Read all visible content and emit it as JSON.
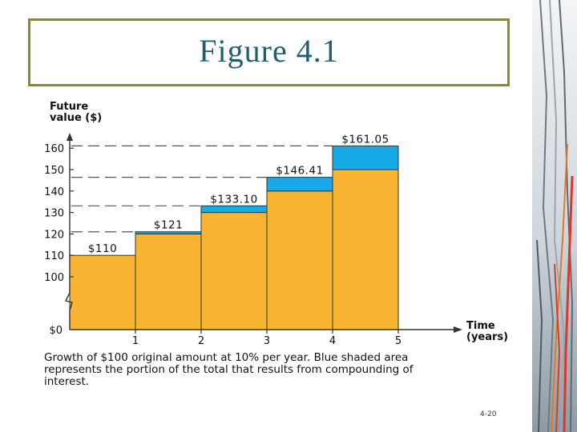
{
  "slide": {
    "title": "Figure 4.1",
    "page_number": "4-20"
  },
  "colors": {
    "principal": "#f9b431",
    "interest": "#17a9e8",
    "title": "#1f5f6e",
    "frame": "#8a8a28"
  },
  "chart_data": {
    "type": "bar",
    "title": "",
    "ylabel": [
      "Future",
      "value ($)"
    ],
    "xlabel": [
      "Time",
      "(years)"
    ],
    "y_ticks": [
      100,
      110,
      120,
      130,
      140,
      150,
      160
    ],
    "y_zero_label": "$0",
    "x_ticks": [
      "1",
      "2",
      "3",
      "4",
      "5"
    ],
    "ylim": [
      100,
      165
    ],
    "axis_break": true,
    "bars": [
      {
        "x_start": 0,
        "x_end": 1,
        "principal": 110,
        "total": 110,
        "label": "$110"
      },
      {
        "x_start": 1,
        "x_end": 2,
        "principal": 120,
        "total": 121,
        "label": "$121"
      },
      {
        "x_start": 2,
        "x_end": 3,
        "principal": 130,
        "total": 133.1,
        "label": "$133.10"
      },
      {
        "x_start": 3,
        "x_end": 4,
        "principal": 140,
        "total": 146.41,
        "label": "$146.41"
      },
      {
        "x_start": 4,
        "x_end": 5,
        "principal": 150,
        "total": 161.05,
        "label": "$161.05"
      }
    ],
    "caption": "Growth of $100 original amount at 10% per year. Blue shaded area represents the portion of the total that results from compounding of interest."
  }
}
